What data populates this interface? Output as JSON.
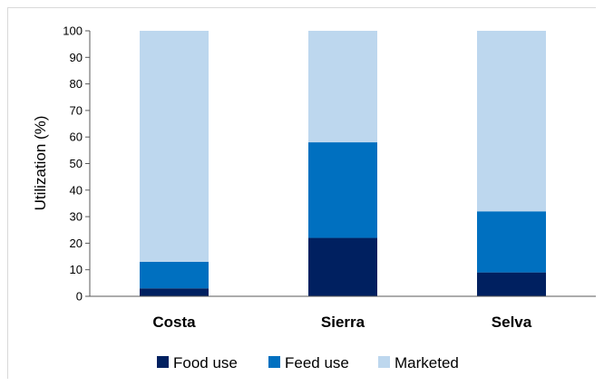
{
  "chart_data": {
    "type": "bar",
    "stacked": true,
    "categories": [
      "Costa",
      "Sierra",
      "Selva"
    ],
    "series": [
      {
        "name": "Food use",
        "values": [
          3,
          22,
          9
        ],
        "color": "#002060"
      },
      {
        "name": "Feed use",
        "values": [
          10,
          36,
          23
        ],
        "color": "#0070c0"
      },
      {
        "name": "Marketed",
        "values": [
          87,
          42,
          68
        ],
        "color": "#bdd7ee"
      }
    ],
    "title": "",
    "xlabel": "",
    "ylabel": "Utilization (%)",
    "ylim": [
      0,
      100
    ],
    "yticks": [
      0,
      10,
      20,
      30,
      40,
      50,
      60,
      70,
      80,
      90,
      100
    ],
    "grid": false,
    "legend_position": "bottom"
  }
}
